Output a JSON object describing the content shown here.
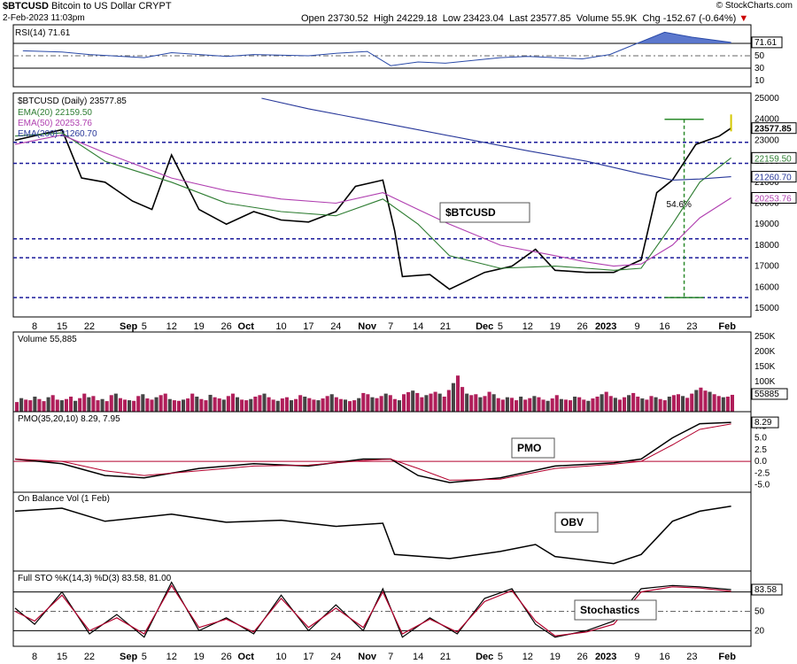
{
  "header": {
    "symbol": "$BTCUSD",
    "name": "Bitcoin to US Dollar",
    "exchange": "CRYPT",
    "datetime": "2-Feb-2023 11:03pm",
    "source": "© StockCharts.com",
    "open_label": "Open",
    "open": "23730.52",
    "high_label": "High",
    "high": "24229.18",
    "low_label": "Low",
    "low": "23423.04",
    "last_label": "Last",
    "last": "23577.85",
    "volume_label": "Volume",
    "volume": "55.9K",
    "chg_label": "Chg",
    "chg": "-152.67 (-0.64%)",
    "down_color": "#cc0000"
  },
  "chart_data": [
    {
      "type": "line",
      "panel": "rsi",
      "legend": "RSI(14) 71.61",
      "ylim": [
        0,
        100
      ],
      "ticks": [
        10,
        30,
        50,
        70
      ],
      "reference_lines": [
        30,
        50,
        70
      ],
      "last_value": 71.61,
      "x": [
        "Aug 5",
        "Aug 15",
        "Aug 22",
        "Sep 5",
        "Sep 12",
        "Sep 26",
        "Oct 3",
        "Oct 17",
        "Oct 24",
        "Nov 1",
        "Nov 7",
        "Nov 14",
        "Nov 21",
        "Dec 5",
        "Dec 12",
        "Dec 26",
        "Jan 2",
        "Jan 9",
        "Jan 16",
        "Jan 23",
        "Feb 2"
      ],
      "y": [
        58,
        56,
        52,
        47,
        55,
        49,
        52,
        50,
        54,
        57,
        34,
        40,
        38,
        47,
        49,
        45,
        52,
        70,
        88,
        80,
        71.61
      ]
    },
    {
      "type": "line",
      "panel": "price",
      "legend": "$BTCUSD (Daily) 23577.85",
      "ylim": [
        15000,
        25000
      ],
      "ticks": [
        15000,
        16000,
        17000,
        18000,
        19000,
        20000,
        21000,
        22000,
        23000,
        24000,
        25000
      ],
      "x_ticks": [
        "8",
        "15",
        "22",
        "Sep",
        "5",
        "12",
        "19",
        "26",
        "Oct",
        "10",
        "17",
        "24",
        "Nov",
        "7",
        "14",
        "21",
        "Dec",
        "5",
        "12",
        "19",
        "26",
        "2023",
        "9",
        "16",
        "23",
        "Feb"
      ],
      "last_value": 23577.85,
      "series": [
        {
          "name": "$BTCUSD",
          "color": "#000000",
          "x": [
            "Aug 3",
            "Aug 10",
            "Aug 15",
            "Aug 20",
            "Aug 26",
            "Sep 2",
            "Sep 7",
            "Sep 12",
            "Sep 19",
            "Sep 26",
            "Oct 3",
            "Oct 10",
            "Oct 17",
            "Oct 24",
            "Oct 29",
            "Nov 5",
            "Nov 8",
            "Nov 10",
            "Nov 17",
            "Nov 22",
            "Dec 1",
            "Dec 8",
            "Dec 14",
            "Dec 19",
            "Dec 27",
            "Jan 3",
            "Jan 10",
            "Jan 14",
            "Jan 18",
            "Jan 24",
            "Jan 30",
            "Feb 2"
          ],
          "values": [
            23000,
            23300,
            23500,
            21200,
            21000,
            20100,
            19700,
            22300,
            19700,
            19000,
            19600,
            19200,
            19100,
            19600,
            20800,
            21100,
            18700,
            16500,
            16600,
            15900,
            16700,
            17000,
            17800,
            16800,
            16700,
            16700,
            17300,
            20500,
            21100,
            22800,
            23200,
            23577.85
          ]
        },
        {
          "name": "EMA(20)",
          "legend": "EMA(20) 22159.50",
          "color": "#2e7d32",
          "x": [
            "Aug 3",
            "Aug 15",
            "Aug 26",
            "Sep 12",
            "Sep 26",
            "Oct 10",
            "Oct 24",
            "Nov 5",
            "Nov 14",
            "Nov 22",
            "Dec 5",
            "Dec 19",
            "Dec 27",
            "Jan 3",
            "Jan 10",
            "Jan 18",
            "Jan 25",
            "Feb 2"
          ],
          "values": [
            23200,
            23350,
            22000,
            21000,
            20000,
            19600,
            19400,
            20200,
            19000,
            17500,
            16900,
            17000,
            16900,
            16800,
            16900,
            19000,
            21000,
            22159.5
          ]
        },
        {
          "name": "EMA(50)",
          "legend": "EMA(50) 20253.76",
          "color": "#b03fb0",
          "x": [
            "Aug 3",
            "Aug 15",
            "Aug 26",
            "Sep 12",
            "Sep 26",
            "Oct 10",
            "Oct 24",
            "Nov 5",
            "Nov 14",
            "Nov 22",
            "Dec 5",
            "Dec 19",
            "Dec 27",
            "Jan 3",
            "Jan 10",
            "Jan 18",
            "Jan 25",
            "Feb 2"
          ],
          "values": [
            22800,
            23250,
            22400,
            21200,
            20600,
            20200,
            20000,
            20500,
            19700,
            19000,
            18000,
            17500,
            17200,
            17000,
            17100,
            18000,
            19300,
            20253.76
          ]
        },
        {
          "name": "EMA(200)",
          "legend": "EMA(200) 21260.70",
          "color": "#28389a",
          "x": [
            "Oct 5",
            "Oct 17",
            "Oct 31",
            "Nov 14",
            "Nov 28",
            "Dec 12",
            "Dec 27",
            "Jan 10",
            "Jan 18",
            "Jan 25",
            "Feb 2"
          ],
          "values": [
            25000,
            24500,
            24000,
            23500,
            23000,
            22500,
            22000,
            21400,
            21100,
            21150,
            21260.7
          ]
        }
      ],
      "support_lines": [
        22900,
        21900,
        18300,
        17400,
        15500
      ],
      "annotation": {
        "text": "$BTCUSD"
      },
      "rally_label": "54.6%",
      "right_labels": [
        "23577.85",
        "22159.50",
        "21260.70",
        "20253.76"
      ]
    },
    {
      "type": "bar",
      "panel": "volume",
      "legend": "Volume 55,885",
      "ylim": [
        0,
        250000
      ],
      "ticks": [
        "50K",
        "100K",
        "150K",
        "200K",
        "250K"
      ],
      "last_value": "55885",
      "up_color": "#444444",
      "down_color": "#b01e5a",
      "values": [
        32,
        45,
        40,
        38,
        50,
        42,
        35,
        48,
        55,
        40,
        38,
        42,
        50,
        36,
        45,
        60,
        48,
        52,
        38,
        42,
        35,
        55,
        60,
        45,
        40,
        38,
        36,
        52,
        58,
        44,
        40,
        48,
        55,
        60,
        42,
        38,
        36,
        40,
        44,
        60,
        50,
        42,
        38,
        56,
        48,
        44,
        40,
        52,
        60,
        48,
        40,
        38,
        42,
        50,
        55,
        60,
        48,
        40,
        36,
        44,
        48,
        38,
        42,
        55,
        50,
        45,
        40,
        38,
        44,
        52,
        58,
        48,
        42,
        40,
        35,
        38,
        45,
        62,
        58,
        48,
        45,
        52,
        60,
        55,
        42,
        38,
        58,
        65,
        70,
        62,
        48,
        55,
        60,
        66,
        60,
        50,
        72,
        95,
        120,
        82,
        60,
        55,
        58,
        48,
        52,
        66,
        58,
        45,
        40,
        48,
        46,
        38,
        50,
        40,
        45,
        52,
        48,
        40,
        36,
        44,
        55,
        42,
        40,
        38,
        50,
        48,
        40,
        36,
        44,
        50,
        58,
        66,
        52,
        46,
        40,
        48,
        55,
        62,
        50,
        44,
        40,
        52,
        48,
        42,
        38,
        50,
        55,
        58,
        52,
        46,
        60,
        72,
        80,
        70,
        66,
        58,
        52,
        48,
        50,
        56
      ]
    },
    {
      "type": "line",
      "panel": "pmo",
      "legend": "PMO(35,20,10) 8.29, 7.95",
      "ylim": [
        -6,
        10
      ],
      "ticks": [
        "-5.0",
        "-2.5",
        "0.0",
        "2.5",
        "5.0",
        "7.5"
      ],
      "series": [
        {
          "name": "PMO",
          "color": "#000000",
          "x": [
            "Aug 3",
            "Aug 15",
            "Aug 26",
            "Sep 5",
            "Sep 19",
            "Oct 3",
            "Oct 17",
            "Oct 31",
            "Nov 7",
            "Nov 14",
            "Nov 22",
            "Dec 5",
            "Dec 19",
            "Jan 3",
            "Jan 10",
            "Jan 18",
            "Jan 25",
            "Feb 2"
          ],
          "values": [
            0.5,
            -0.5,
            -3.0,
            -3.5,
            -1.5,
            -0.5,
            -1.0,
            0.5,
            0.5,
            -3.0,
            -4.5,
            -3.5,
            -1.0,
            -0.3,
            0.5,
            5.0,
            8.0,
            8.29
          ]
        },
        {
          "name": "Signal",
          "color": "#b3002d",
          "x": [
            "Aug 3",
            "Aug 15",
            "Aug 26",
            "Sep 5",
            "Sep 19",
            "Oct 3",
            "Oct 17",
            "Oct 31",
            "Nov 7",
            "Nov 14",
            "Nov 22",
            "Dec 5",
            "Dec 19",
            "Jan 3",
            "Jan 10",
            "Jan 18",
            "Jan 25",
            "Feb 2"
          ],
          "values": [
            0.5,
            0.0,
            -2.0,
            -3.0,
            -2.0,
            -1.0,
            -0.8,
            0.2,
            0.5,
            -1.5,
            -4.0,
            -3.8,
            -1.5,
            -0.6,
            0.0,
            3.5,
            6.8,
            7.95
          ]
        }
      ],
      "annotation": {
        "text": "PMO"
      },
      "last_value": "8.29"
    },
    {
      "type": "line",
      "panel": "obv",
      "legend": "On Balance Vol (1 Feb)",
      "series": [
        {
          "name": "OBV",
          "color": "#000000",
          "x": [
            "Aug 3",
            "Aug 15",
            "Aug 26",
            "Sep 12",
            "Sep 26",
            "Oct 10",
            "Oct 24",
            "Nov 5",
            "Nov 8",
            "Nov 22",
            "Dec 5",
            "Dec 14",
            "Dec 19",
            "Jan 3",
            "Jan 10",
            "Jan 18",
            "Jan 25",
            "Feb 2"
          ],
          "values": [
            55,
            58,
            45,
            52,
            44,
            46,
            40,
            43,
            12,
            8,
            15,
            22,
            10,
            3,
            12,
            45,
            55,
            60
          ]
        }
      ],
      "annotation": {
        "text": "OBV"
      }
    },
    {
      "type": "line",
      "panel": "stochastics",
      "legend": "Full STO %K(14,3) %D(3) 83.58, 81.00",
      "ylim": [
        0,
        100
      ],
      "ticks": [
        20,
        50,
        80
      ],
      "reference_lines": [
        20,
        50,
        80
      ],
      "series": [
        {
          "name": "%K",
          "color": "#000000",
          "x": [
            "Aug 3",
            "Aug 8",
            "Aug 15",
            "Aug 22",
            "Aug 29",
            "Sep 5",
            "Sep 12",
            "Sep 19",
            "Sep 26",
            "Oct 3",
            "Oct 10",
            "Oct 17",
            "Oct 24",
            "Oct 31",
            "Nov 5",
            "Nov 10",
            "Nov 17",
            "Nov 24",
            "Dec 1",
            "Dec 8",
            "Dec 14",
            "Dec 19",
            "Dec 27",
            "Jan 3",
            "Jan 10",
            "Jan 18",
            "Jan 25",
            "Feb 2"
          ],
          "values": [
            55,
            30,
            80,
            15,
            45,
            10,
            95,
            20,
            40,
            15,
            75,
            20,
            60,
            20,
            85,
            10,
            40,
            15,
            70,
            85,
            30,
            10,
            20,
            35,
            85,
            90,
            88,
            83.58
          ]
        },
        {
          "name": "%D",
          "color": "#b3002d",
          "x": [
            "Aug 3",
            "Aug 8",
            "Aug 15",
            "Aug 22",
            "Aug 29",
            "Sep 5",
            "Sep 12",
            "Sep 19",
            "Sep 26",
            "Oct 3",
            "Oct 10",
            "Oct 17",
            "Oct 24",
            "Oct 31",
            "Nov 5",
            "Nov 10",
            "Nov 17",
            "Nov 24",
            "Dec 1",
            "Dec 8",
            "Dec 14",
            "Dec 19",
            "Dec 27",
            "Jan 3",
            "Jan 10",
            "Jan 18",
            "Jan 25",
            "Feb 2"
          ],
          "values": [
            50,
            35,
            75,
            20,
            40,
            15,
            90,
            25,
            38,
            18,
            70,
            25,
            55,
            25,
            80,
            15,
            38,
            18,
            65,
            82,
            35,
            12,
            18,
            30,
            80,
            88,
            86,
            81.0
          ]
        }
      ],
      "annotation": {
        "text": "Stochastics"
      },
      "last_value": "83.58"
    }
  ]
}
